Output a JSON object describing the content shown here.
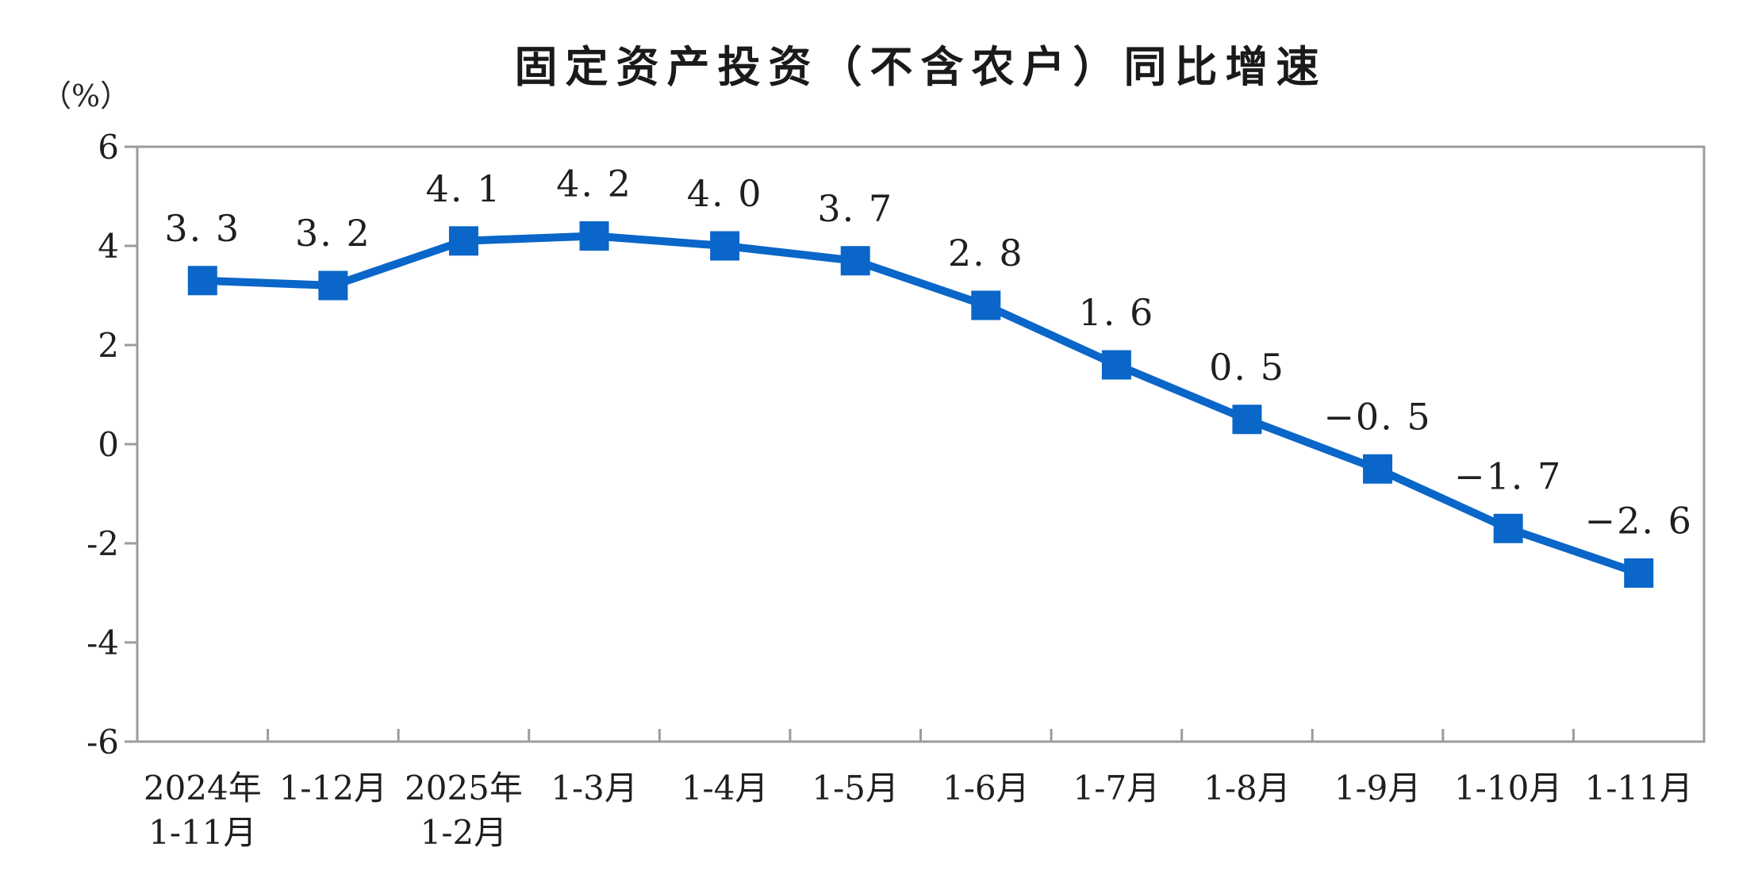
{
  "chart": {
    "title": "固定资产投资（不含农户）同比增速",
    "y_unit": "（%）"
  },
  "chart_data": {
    "type": "line",
    "title": "固定资产投资（不含农户）同比增速",
    "ylabel": "（%）",
    "xlabel": "",
    "categories": [
      [
        "2024年",
        "1-11月"
      ],
      [
        "1-12月"
      ],
      [
        "2025年",
        "1-2月"
      ],
      [
        "1-3月"
      ],
      [
        "1-4月"
      ],
      [
        "1-5月"
      ],
      [
        "1-6月"
      ],
      [
        "1-7月"
      ],
      [
        "1-8月"
      ],
      [
        "1-9月"
      ],
      [
        "1-10月"
      ],
      [
        "1-11月"
      ]
    ],
    "values": [
      3.3,
      3.2,
      4.1,
      4.2,
      4.0,
      3.7,
      2.8,
      1.6,
      0.5,
      -0.5,
      -1.7,
      -2.6
    ],
    "point_labels": [
      "3. 3",
      "3. 2",
      "4. 1",
      "4. 2",
      "4. 0",
      "3. 7",
      "2. 8",
      "1. 6",
      "0. 5",
      "−0. 5",
      "−1. 7",
      "−2. 6"
    ],
    "ylim": [
      -6,
      6
    ],
    "yticks": [
      6,
      4,
      2,
      0,
      -2,
      -4,
      -6
    ],
    "ytick_labels": [
      "6",
      "4",
      "2",
      "0",
      "-2",
      "-4",
      "-6"
    ],
    "grid": false,
    "legend": false,
    "marker": "square",
    "line_color": "#0A66C8",
    "axis_color": "#9C9C9C",
    "text_color": "#1F1F1F"
  }
}
